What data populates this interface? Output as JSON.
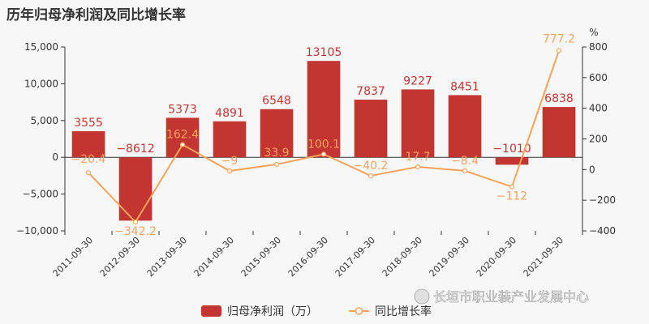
{
  "title": "历年归母净利润及同比增长率",
  "watermark": "长垣市职业装产业发展中心",
  "chart_data": {
    "type": "bar",
    "categories": [
      "2011-09-30",
      "2012-09-30",
      "2013-09-30",
      "2014-09-30",
      "2015-09-30",
      "2016-09-30",
      "2017-09-30",
      "2018-09-30",
      "2019-09-30",
      "2020-09-30",
      "2021-09-30"
    ],
    "series": [
      {
        "name": "归母净利润（万）",
        "type": "bar",
        "axis": "left",
        "color": "#c23531",
        "values": [
          3555,
          -8612,
          5373,
          4891,
          6548,
          13105,
          7837,
          9227,
          8451,
          -1010,
          6838
        ],
        "labels": [
          "3555",
          "−8612",
          "5373",
          "4891",
          "6548",
          "13105",
          "7837",
          "9227",
          "8451",
          "−1010",
          "6838"
        ]
      },
      {
        "name": "同比增长率",
        "type": "line",
        "axis": "right",
        "color": "#f7a35c",
        "values": [
          -20.4,
          -342.2,
          162.4,
          -9,
          33.9,
          100.1,
          -40.2,
          17.7,
          -8.4,
          -112,
          777.2
        ],
        "labels": [
          "−20.4",
          "−342.2",
          "162.4",
          "−9",
          "33.9",
          "100.1",
          "−40.2",
          "17.7",
          "−8.4",
          "−112",
          "777.2"
        ]
      }
    ],
    "y_left": {
      "ylim": [
        -10000,
        15000
      ],
      "ticks": [
        15000,
        10000,
        5000,
        0,
        -5000,
        -10000
      ],
      "tick_labels": [
        "15,000",
        "10,000",
        "5,000",
        "0",
        "−5,000",
        "−10,000"
      ]
    },
    "y_right": {
      "label": "%",
      "ylim": [
        -400,
        800
      ],
      "ticks": [
        800,
        600,
        400,
        200,
        0,
        -200,
        -400
      ],
      "tick_labels": [
        "800",
        "600",
        "400",
        "200",
        "0",
        "−200",
        "−400"
      ]
    },
    "grid": false,
    "legend": "bottom"
  }
}
